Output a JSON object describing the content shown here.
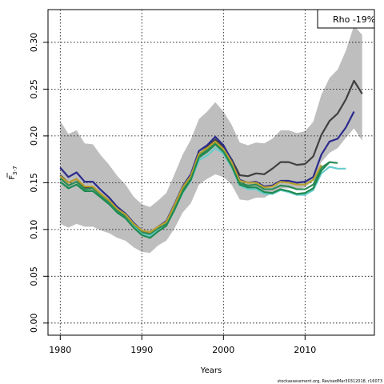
{
  "chart_data": {
    "type": "line",
    "xlabel": "Years",
    "ylabel": "F",
    "ylabel_sub": "3-7",
    "xlim": [
      1978.5,
      2018.5
    ],
    "ylim": [
      -0.013,
      0.335
    ],
    "x_ticks": [
      1980,
      1990,
      2000,
      2010
    ],
    "x_tick_labels": [
      "1980",
      "1990",
      "2000",
      "2010"
    ],
    "y_ticks": [
      0.0,
      0.05,
      0.1,
      0.15,
      0.2,
      0.25,
      0.3
    ],
    "y_tick_labels": [
      "0.00",
      "0.05",
      "0.10",
      "0.15",
      "0.20",
      "0.25",
      "0.30"
    ],
    "grid": true,
    "legend": {
      "text": "Rho -19%",
      "placement": "top-right"
    },
    "footer": "stockassessment.org, RevisedMar30312018, r16073",
    "band": {
      "color": "#bebebe",
      "x": [
        1980,
        1981,
        1982,
        1983,
        1984,
        1985,
        1986,
        1987,
        1988,
        1989,
        1990,
        1991,
        1992,
        1993,
        1994,
        1995,
        1996,
        1997,
        1998,
        1999,
        2000,
        2001,
        2002,
        2003,
        2004,
        2005,
        2006,
        2007,
        2008,
        2009,
        2010,
        2011,
        2012,
        2013,
        2014,
        2015,
        2016,
        2017
      ],
      "upper": [
        0.216,
        0.202,
        0.206,
        0.192,
        0.191,
        0.179,
        0.169,
        0.157,
        0.148,
        0.135,
        0.127,
        0.124,
        0.131,
        0.139,
        0.159,
        0.18,
        0.196,
        0.218,
        0.226,
        0.236,
        0.226,
        0.212,
        0.193,
        0.19,
        0.193,
        0.192,
        0.197,
        0.206,
        0.206,
        0.203,
        0.205,
        0.215,
        0.244,
        0.262,
        0.271,
        0.291,
        0.318,
        0.308
      ],
      "lower": [
        0.106,
        0.102,
        0.106,
        0.103,
        0.103,
        0.099,
        0.096,
        0.091,
        0.088,
        0.081,
        0.076,
        0.075,
        0.083,
        0.088,
        0.101,
        0.118,
        0.128,
        0.148,
        0.154,
        0.159,
        0.156,
        0.148,
        0.132,
        0.131,
        0.134,
        0.134,
        0.139,
        0.144,
        0.144,
        0.143,
        0.145,
        0.152,
        0.172,
        0.182,
        0.187,
        0.198,
        0.208,
        0.195
      ]
    },
    "series": [
      {
        "color": "#404040",
        "x": [
          1980,
          1981,
          1982,
          1983,
          1984,
          1985,
          1986,
          1987,
          1988,
          1989,
          1990,
          1991,
          1992,
          1993,
          1994,
          1995,
          1996,
          1997,
          1998,
          1999,
          2000,
          2001,
          2002,
          2003,
          2004,
          2005,
          2006,
          2007,
          2008,
          2009,
          2010,
          2011,
          2012,
          2013,
          2014,
          2015,
          2016,
          2017
        ],
        "values": [
          0.158,
          0.15,
          0.154,
          0.145,
          0.145,
          0.137,
          0.129,
          0.12,
          0.113,
          0.104,
          0.098,
          0.096,
          0.102,
          0.108,
          0.126,
          0.145,
          0.158,
          0.18,
          0.188,
          0.196,
          0.188,
          0.175,
          0.158,
          0.157,
          0.16,
          0.159,
          0.165,
          0.172,
          0.172,
          0.169,
          0.17,
          0.178,
          0.201,
          0.216,
          0.224,
          0.239,
          0.259,
          0.245
        ]
      },
      {
        "color": "#2a2a8c",
        "x": [
          1980,
          1981,
          1982,
          1983,
          1984,
          1985,
          1986,
          1987,
          1988,
          1989,
          1990,
          1991,
          1992,
          1993,
          1994,
          1995,
          1996,
          1997,
          1998,
          1999,
          2000,
          2001,
          2002,
          2003,
          2004,
          2005,
          2006,
          2007,
          2008,
          2009,
          2010,
          2011,
          2012,
          2013,
          2014,
          2015,
          2016
        ],
        "values": [
          0.166,
          0.156,
          0.161,
          0.151,
          0.151,
          0.142,
          0.134,
          0.124,
          0.117,
          0.107,
          0.099,
          0.097,
          0.103,
          0.109,
          0.127,
          0.146,
          0.159,
          0.184,
          0.19,
          0.199,
          0.19,
          0.174,
          0.153,
          0.15,
          0.151,
          0.146,
          0.147,
          0.152,
          0.152,
          0.15,
          0.151,
          0.156,
          0.18,
          0.194,
          0.197,
          0.209,
          0.226
        ]
      },
      {
        "color": "#2e8b57",
        "x": [
          1980,
          1981,
          1982,
          1983,
          1984,
          1985,
          1986,
          1987,
          1988,
          1989,
          1990,
          1991,
          1992,
          1993,
          1994,
          1995,
          1996,
          1997,
          1998,
          1999,
          2000,
          2001,
          2002,
          2003,
          2004,
          2005,
          2006,
          2007,
          2008,
          2009,
          2010,
          2011,
          2012,
          2013,
          2014
        ],
        "values": [
          0.155,
          0.147,
          0.151,
          0.143,
          0.144,
          0.136,
          0.129,
          0.12,
          0.114,
          0.105,
          0.097,
          0.095,
          0.101,
          0.106,
          0.124,
          0.142,
          0.155,
          0.179,
          0.185,
          0.193,
          0.185,
          0.171,
          0.15,
          0.147,
          0.148,
          0.143,
          0.143,
          0.147,
          0.146,
          0.143,
          0.143,
          0.148,
          0.166,
          0.172,
          0.171
        ]
      },
      {
        "color": "#b8a030",
        "x": [
          1980,
          1981,
          1982,
          1983,
          1984,
          1985,
          1986,
          1987,
          1988,
          1989,
          1990,
          1991,
          1992,
          1993,
          1994,
          1995,
          1996,
          1997,
          1998,
          1999,
          2000,
          2001,
          2002,
          2003,
          2004,
          2005,
          2006,
          2007,
          2008,
          2009,
          2010,
          2011,
          2012
        ],
        "values": [
          0.157,
          0.15,
          0.154,
          0.146,
          0.146,
          0.138,
          0.131,
          0.122,
          0.116,
          0.106,
          0.099,
          0.097,
          0.103,
          0.108,
          0.126,
          0.145,
          0.157,
          0.181,
          0.187,
          0.194,
          0.186,
          0.172,
          0.152,
          0.15,
          0.15,
          0.145,
          0.146,
          0.151,
          0.15,
          0.148,
          0.148,
          0.153,
          0.169
        ]
      },
      {
        "color": "#66cccc",
        "x": [
          1980,
          1981,
          1982,
          1983,
          1984,
          1985,
          1986,
          1987,
          1988,
          1989,
          1990,
          1991,
          1992,
          1993,
          1994,
          1995,
          1996,
          1997,
          1998,
          1999,
          2000,
          2001,
          2002,
          2003,
          2004,
          2005,
          2006,
          2007,
          2008,
          2009,
          2010,
          2011,
          2012,
          2013,
          2014,
          2015
        ],
        "values": [
          0.151,
          0.144,
          0.148,
          0.141,
          0.141,
          0.134,
          0.127,
          0.118,
          0.112,
          0.103,
          0.095,
          0.093,
          0.099,
          0.104,
          0.121,
          0.139,
          0.152,
          0.174,
          0.179,
          0.187,
          0.181,
          0.167,
          0.147,
          0.143,
          0.143,
          0.138,
          0.138,
          0.142,
          0.14,
          0.137,
          0.137,
          0.142,
          0.16,
          0.167,
          0.165,
          0.165
        ]
      },
      {
        "color": "#1f8a50",
        "x": [
          1980,
          1981,
          1982,
          1983,
          1984,
          1985,
          1986,
          1987,
          1988,
          1989,
          1990,
          1991,
          1992,
          1993,
          1994,
          1995,
          1996,
          1997,
          1998,
          1999,
          2000,
          2001,
          2002,
          2003,
          2004,
          2005,
          2006,
          2007,
          2008,
          2009,
          2010,
          2011,
          2012,
          2013
        ],
        "values": [
          0.151,
          0.144,
          0.148,
          0.141,
          0.141,
          0.134,
          0.127,
          0.118,
          0.112,
          0.102,
          0.094,
          0.091,
          0.098,
          0.104,
          0.121,
          0.14,
          0.153,
          0.177,
          0.183,
          0.191,
          0.183,
          0.168,
          0.148,
          0.145,
          0.145,
          0.14,
          0.139,
          0.143,
          0.141,
          0.138,
          0.139,
          0.144,
          0.163,
          0.172
        ]
      }
    ]
  }
}
